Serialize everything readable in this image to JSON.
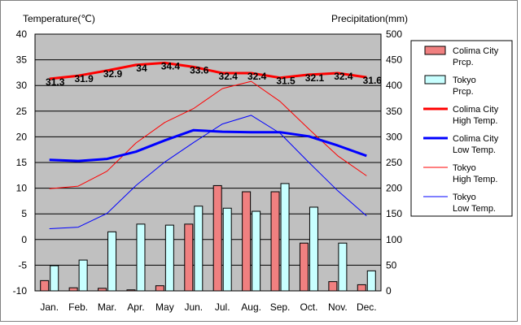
{
  "chart_data": {
    "type": "bar+line",
    "left_axis_title": "Temperature(℃)",
    "right_axis_title": "Precipitation(mm)",
    "categories": [
      "Jan.",
      "Feb.",
      "Mar.",
      "Apr.",
      "May",
      "Jun.",
      "Jul.",
      "Aug.",
      "Sep.",
      "Oct.",
      "Nov.",
      "Dec."
    ],
    "temp_range": [
      -10,
      40
    ],
    "temp_ticks": [
      40,
      35,
      30,
      25,
      20,
      15,
      10,
      5,
      0,
      -5,
      -10
    ],
    "precip_range": [
      0,
      500
    ],
    "precip_ticks": [
      500,
      450,
      400,
      350,
      300,
      250,
      200,
      150,
      100,
      50,
      0
    ],
    "bar_series": [
      {
        "name": "Colima City Prcp.",
        "legend_lines": [
          "Colima City",
          "Prcp."
        ],
        "color": "#f08080",
        "values": [
          20,
          6,
          5,
          2,
          10,
          130,
          205,
          193,
          193,
          93,
          18,
          12
        ]
      },
      {
        "name": "Tokyo Prcp.",
        "legend_lines": [
          "Tokyo",
          "Prcp."
        ],
        "color": "#c8ffff",
        "values": [
          49,
          60,
          115,
          130,
          128,
          165,
          161,
          155,
          209,
          163,
          93,
          39
        ]
      }
    ],
    "line_series": [
      {
        "name": "Colima City High Temp.",
        "legend_lines": [
          "Colima City",
          "High Temp."
        ],
        "color": "#ff0000",
        "width": 3,
        "values": [
          31.3,
          31.9,
          32.9,
          34.0,
          34.4,
          33.6,
          32.4,
          32.4,
          31.5,
          32.1,
          32.4,
          31.6
        ],
        "data_labels": [
          "31.3",
          "31.9",
          "32.9",
          "34",
          "34.4",
          "33.6",
          "32.4",
          "32.4",
          "31.5",
          "32.1",
          "32.4",
          "31.6"
        ]
      },
      {
        "name": "Colima City Low Temp.",
        "legend_lines": [
          "Colima City",
          "Low Temp."
        ],
        "color": "#0000ff",
        "width": 3,
        "values": [
          15.5,
          15.3,
          15.7,
          17.1,
          19.3,
          21.3,
          21.0,
          20.9,
          20.9,
          20.1,
          18.3,
          16.3
        ]
      },
      {
        "name": "Tokyo High Temp.",
        "legend_lines": [
          "Tokyo",
          "High Temp."
        ],
        "color": "#ff0000",
        "width": 1,
        "values": [
          9.9,
          10.4,
          13.3,
          18.8,
          22.8,
          25.5,
          29.4,
          30.8,
          26.9,
          21.5,
          16.3,
          12.4
        ]
      },
      {
        "name": "Tokyo Low Temp.",
        "legend_lines": [
          "Tokyo",
          "Low Temp."
        ],
        "color": "#0000ff",
        "width": 1,
        "values": [
          2.1,
          2.4,
          5.1,
          10.5,
          15.1,
          18.9,
          22.5,
          24.2,
          20.7,
          15.0,
          9.5,
          4.6
        ]
      }
    ]
  }
}
